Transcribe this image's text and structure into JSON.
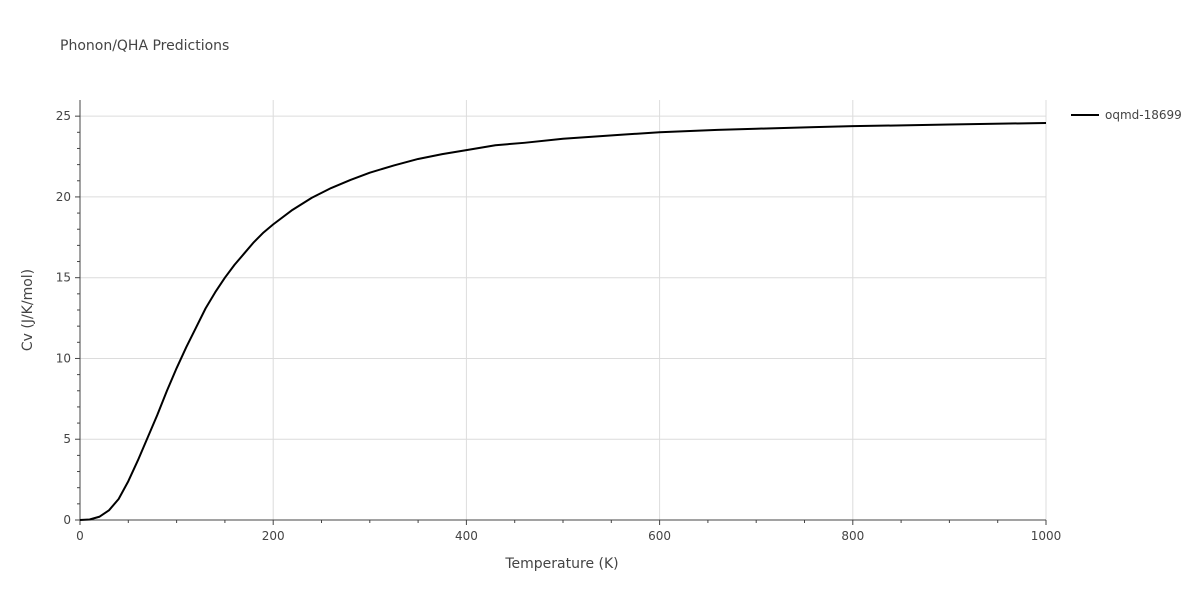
{
  "chart_data": {
    "type": "line",
    "title": "Phonon/QHA Predictions",
    "xlabel": "Temperature (K)",
    "ylabel": "Cv (J/K/mol)",
    "xlim": [
      0,
      1000
    ],
    "ylim": [
      0,
      26
    ],
    "x_ticks": [
      0,
      200,
      400,
      600,
      800,
      1000
    ],
    "y_ticks": [
      0,
      5,
      10,
      15,
      20,
      25
    ],
    "grid": true,
    "legend_position": "top-right",
    "series": [
      {
        "name": "oqmd-18699",
        "color": "#000000",
        "x": [
          0,
          10,
          20,
          30,
          40,
          50,
          60,
          70,
          80,
          90,
          100,
          110,
          120,
          130,
          140,
          150,
          160,
          170,
          180,
          190,
          200,
          220,
          240,
          260,
          280,
          300,
          325,
          350,
          375,
          400,
          430,
          460,
          500,
          560,
          600,
          660,
          700,
          760,
          800,
          900,
          1000
        ],
        "y": [
          0,
          0.03,
          0.2,
          0.6,
          1.3,
          2.4,
          3.7,
          5.1,
          6.5,
          8.0,
          9.4,
          10.7,
          11.9,
          13.1,
          14.1,
          15.0,
          15.8,
          16.5,
          17.2,
          17.8,
          18.3,
          19.2,
          19.95,
          20.55,
          21.05,
          21.5,
          21.95,
          22.35,
          22.65,
          22.9,
          23.2,
          23.35,
          23.6,
          23.85,
          24.0,
          24.15,
          24.22,
          24.32,
          24.38,
          24.48,
          24.58
        ]
      }
    ]
  }
}
